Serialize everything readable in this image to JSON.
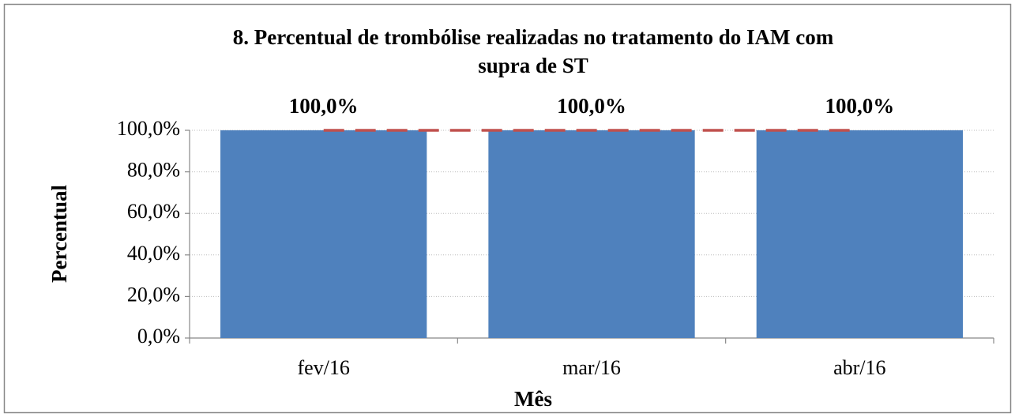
{
  "chart_data": {
    "type": "bar",
    "title": [
      "8. Percentual de trombólise realizadas no tratamento do IAM com",
      "supra de ST"
    ],
    "x_label": "Mês",
    "y_label": "Percentual",
    "categories": [
      "fev/16",
      "mar/16",
      "abr/16"
    ],
    "series": [
      {
        "type": "bar",
        "color": "#4f81bd",
        "values": [
          100,
          100,
          100
        ],
        "value_labels": [
          "100,0%",
          "100,0%",
          "100,0%"
        ]
      },
      {
        "type": "line",
        "color": "#c0504d",
        "dashed": true,
        "values": [
          100,
          100,
          100
        ]
      }
    ],
    "ylim": [
      0,
      100
    ],
    "yticks": [
      {
        "value": 0,
        "label": "0,0%"
      },
      {
        "value": 20,
        "label": "20,0%"
      },
      {
        "value": 40,
        "label": "40,0%"
      },
      {
        "value": 60,
        "label": "60,0%"
      },
      {
        "value": 80,
        "label": "80,0%"
      },
      {
        "value": 100,
        "label": "100,0%"
      }
    ],
    "grid": true
  }
}
